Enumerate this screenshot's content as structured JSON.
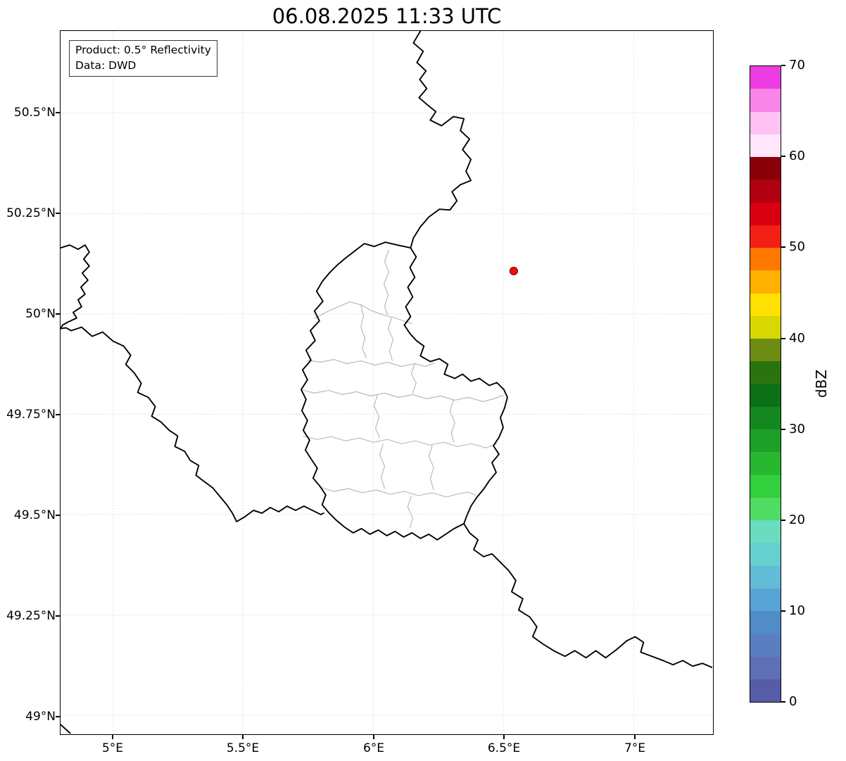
{
  "title": "06.08.2025 11:33 UTC",
  "info_box": {
    "line1": "Product: 0.5° Reflectivity",
    "line2": "Data: DWD"
  },
  "axes": {
    "y_ticks": [
      "50.5°N",
      "50.25°N",
      "50°N",
      "49.75°N",
      "49.5°N",
      "49.25°N",
      "49°N"
    ],
    "x_ticks": [
      "5°E",
      "5.5°E",
      "6°E",
      "6.5°E",
      "7°E"
    ]
  },
  "colorbar": {
    "label": "dBZ",
    "tick_labels": [
      "70",
      "60",
      "50",
      "40",
      "30",
      "20",
      "10",
      "0"
    ],
    "range_min": 0,
    "range_max": 70,
    "segments_bottom_to_top": [
      "#575ca8",
      "#5f6fb4",
      "#5a7fc0",
      "#4f8cc8",
      "#58a4d4",
      "#62bcd8",
      "#66cfd0",
      "#6adcc0",
      "#50dc64",
      "#32d03c",
      "#28b830",
      "#1ea028",
      "#148820",
      "#0c7018",
      "#2a7410",
      "#6e8c14",
      "#d8d800",
      "#ffe000",
      "#ffb000",
      "#ff7800",
      "#f22015",
      "#d80010",
      "#b00010",
      "#8a0008",
      "#ffe6fb",
      "#ffc2f2",
      "#f884e8",
      "#ec3ce2"
    ]
  },
  "map": {
    "marker_color": "#f20c0c",
    "marker_edge_color": "#8f0000",
    "country_border_color": "#000000",
    "district_border_color": "#b4b4b4",
    "grid_color": "#c4c4c4"
  }
}
